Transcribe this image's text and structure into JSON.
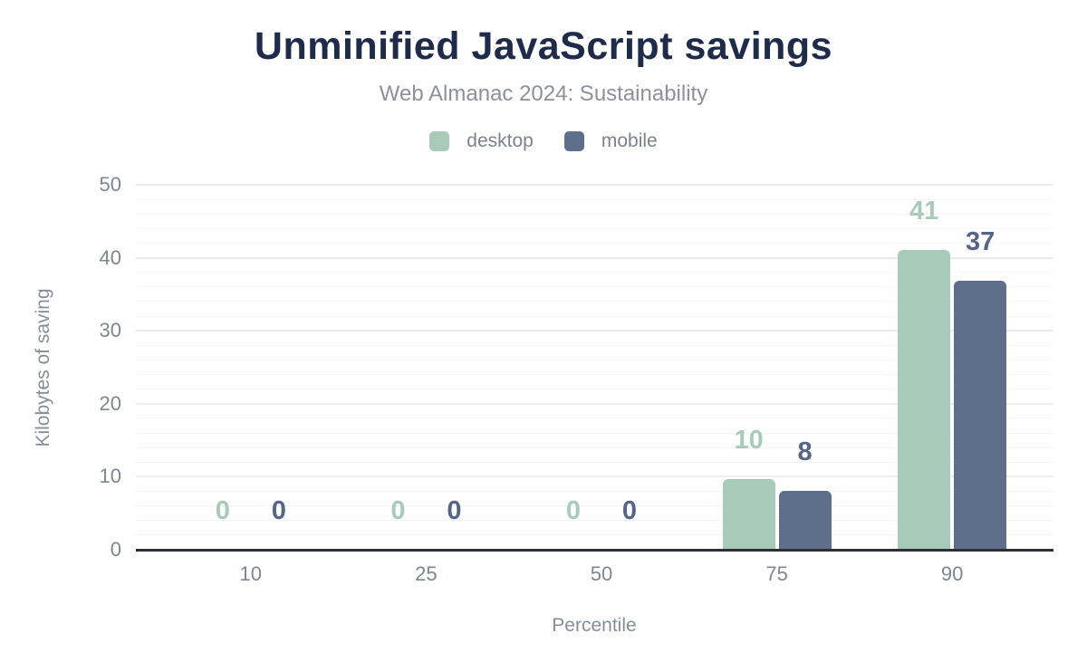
{
  "header": {
    "title": "Unminified JavaScript savings",
    "subtitle": "Web Almanac 2024: Sustainability"
  },
  "legend": {
    "items": [
      {
        "label": "desktop",
        "color": "#a8cab9"
      },
      {
        "label": "mobile",
        "color": "#5e6f8c"
      }
    ]
  },
  "colors": {
    "title_text": "#1f2b4a",
    "muted_text": "#8b919c",
    "tick_text": "#7d8693",
    "axis_line": "#2d2f35",
    "gridline_major": "#ececec",
    "gridline_minor": "#f5f5f5"
  },
  "chart_data": {
    "type": "bar",
    "title": "Unminified JavaScript savings",
    "subtitle": "Web Almanac 2024: Sustainability",
    "categories": [
      "10",
      "25",
      "50",
      "75",
      "90"
    ],
    "xlabel": "Percentile",
    "ylabel": "Kilobytes of saving",
    "ylim": [
      0,
      50
    ],
    "y_major_step": 10,
    "y_minor_step": 2,
    "grid": true,
    "legend_position": "top",
    "series": [
      {
        "name": "desktop",
        "color": "#a8cab9",
        "label_color": "#a6ccb8",
        "values": [
          0,
          0,
          0,
          10,
          41
        ],
        "values_precise": [
          0,
          0,
          0,
          9.7,
          41.1
        ],
        "labels": [
          "0",
          "0",
          "0",
          "10",
          "41"
        ]
      },
      {
        "name": "mobile",
        "color": "#5e6f8c",
        "label_color": "#55658a",
        "values": [
          0,
          0,
          0,
          8,
          37
        ],
        "values_precise": [
          0,
          0,
          0,
          8.1,
          36.9
        ],
        "labels": [
          "0",
          "0",
          "0",
          "8",
          "37"
        ]
      }
    ]
  }
}
